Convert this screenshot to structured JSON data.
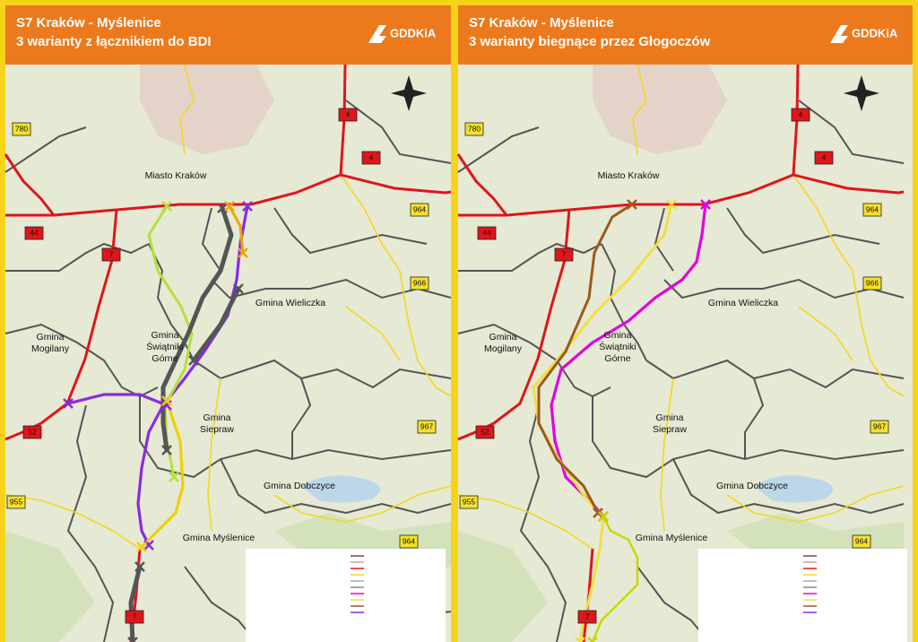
{
  "panels": [
    {
      "title": "S7 Kraków - Myślenice",
      "subtitle": "3 warianty z łącznikiem do BDI",
      "logo": "GDDKiA",
      "labels": [
        [
          "Miasto Kraków"
        ],
        [
          "Gmina Wieliczka"
        ],
        [
          "Gmina",
          "Mogilany"
        ],
        [
          "Gmina",
          "Świątniki",
          "Górne"
        ],
        [
          "Gmina",
          "Siepraw"
        ],
        [
          "Gmina Dobczyce"
        ],
        [
          "Gmina Myślenice"
        ]
      ],
      "road_numbers": [
        "780",
        "44",
        "7",
        "4",
        "964",
        "966",
        "52",
        "967",
        "955",
        "964",
        "7",
        "4"
      ]
    },
    {
      "title": "S7 Kraków - Myślenice",
      "subtitle": "3 warianty biegnące przez Głogoczów",
      "logo": "GDDKiA",
      "labels": [
        [
          "Miasto Kraków"
        ],
        [
          "Gmina Wieliczka"
        ],
        [
          "Gmina",
          "Mogilany"
        ],
        [
          "Gmina",
          "Świątniki",
          "Górne"
        ],
        [
          "Gmina",
          "Siepraw"
        ],
        [
          "Gmina Dobczyce"
        ],
        [
          "Gmina Myślenice"
        ]
      ],
      "road_numbers": [
        "780",
        "44",
        "7",
        "4",
        "964",
        "966",
        "52",
        "967",
        "955",
        "964",
        "7",
        "4"
      ]
    }
  ]
}
